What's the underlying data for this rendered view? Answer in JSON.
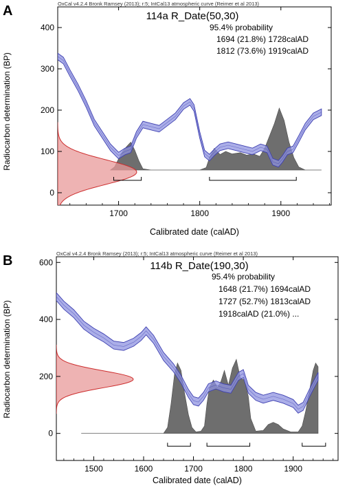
{
  "chart_data": [
    {
      "panel": "A",
      "type": "area",
      "credit": "OxCal v4.2.4 Bronk Ramsey (2013); r:5; IntCal13 atmospheric curve (Reimer et al 2013)",
      "title": "114a R_Date(50,30)",
      "probability_heading": "95.4% probability",
      "ranges_text": [
        "1694 (21.8%) 1728calAD",
        "1812 (73.6%) 1919calAD"
      ],
      "xlabel": "Calibrated date (calAD)",
      "ylabel": "Radiocarbon determination (BP)",
      "xlim": [
        1625,
        1962
      ],
      "ylim": [
        -30,
        450
      ],
      "xticks": [
        1700,
        1800,
        1900
      ],
      "yticks": [
        0,
        100,
        200,
        300,
        400
      ],
      "radiocarbon_mean": 50,
      "radiocarbon_error": 30,
      "prob_baseline_y": 55,
      "prob_max_height": 150,
      "range_bar_y": 30,
      "calibration_curve": {
        "name": "IntCal13",
        "x": [
          1625,
          1632,
          1640,
          1650,
          1660,
          1670,
          1680,
          1690,
          1700,
          1708,
          1715,
          1722,
          1730,
          1740,
          1750,
          1760,
          1770,
          1780,
          1788,
          1793,
          1800,
          1806,
          1812,
          1818,
          1825,
          1835,
          1845,
          1855,
          1865,
          1875,
          1883,
          1890,
          1897,
          1902,
          1908,
          1915,
          1922,
          1930,
          1940,
          1950
        ],
        "y": [
          330,
          320,
          290,
          255,
          215,
          170,
          140,
          110,
          90,
          100,
          105,
          140,
          165,
          160,
          155,
          170,
          185,
          210,
          220,
          205,
          140,
          95,
          85,
          98,
          110,
          115,
          110,
          105,
          100,
          110,
          105,
          75,
          70,
          82,
          100,
          105,
          130,
          160,
          185,
          195
        ],
        "band": [
          8,
          8,
          8,
          8,
          8,
          8,
          8,
          8,
          8,
          8,
          8,
          8,
          8,
          8,
          8,
          8,
          8,
          8,
          8,
          8,
          8,
          8,
          8,
          8,
          8,
          8,
          8,
          8,
          8,
          8,
          8,
          8,
          8,
          8,
          8,
          8,
          8,
          8,
          8,
          8
        ]
      },
      "calibrated_probability": {
        "x": [
          1690,
          1695,
          1700,
          1705,
          1710,
          1715,
          1720,
          1725,
          1730,
          1740,
          1760,
          1780,
          1800,
          1808,
          1812,
          1818,
          1825,
          1832,
          1840,
          1850,
          1858,
          1866,
          1874,
          1880,
          1886,
          1892,
          1898,
          1904,
          1910,
          1916,
          1922,
          1930,
          1950
        ],
        "p": [
          0,
          0.05,
          0.18,
          0.3,
          0.38,
          0.45,
          0.32,
          0.15,
          0.02,
          0,
          0,
          0,
          0,
          0.04,
          0.2,
          0.35,
          0.25,
          0.3,
          0.26,
          0.28,
          0.24,
          0.26,
          0.22,
          0.35,
          0.55,
          0.75,
          1.0,
          0.8,
          0.45,
          0.2,
          0.05,
          0,
          0
        ]
      },
      "range_bars": [
        [
          1694,
          1728
        ],
        [
          1812,
          1919
        ]
      ]
    },
    {
      "panel": "B",
      "type": "area",
      "credit": "OxCal v4.2.4 Bronk Ramsey (2013); r:5; IntCal13 atmospheric curve (Reimer et al 2013)",
      "title": "114b R_Date(190,30)",
      "probability_heading": "95.4% probability",
      "ranges_text": [
        "1648 (21.7%) 1694calAD",
        "1727 (52.7%) 1813calAD",
        "1918calAD (21.0%) ..."
      ],
      "xlabel": "Calibrated date (calAD)",
      "ylabel": "Radiocarbon determination (BP)",
      "xlim": [
        1425,
        1990
      ],
      "ylim": [
        -95,
        620
      ],
      "xticks": [
        1500,
        1600,
        1700,
        1800,
        1900
      ],
      "yticks": [
        0,
        200,
        400,
        600
      ],
      "radiocarbon_mean": 190,
      "radiocarbon_error": 30,
      "prob_baseline_y": 0,
      "prob_max_height": 260,
      "range_bar_y": -45,
      "calibration_curve": {
        "name": "IntCal13",
        "x": [
          1425,
          1440,
          1460,
          1480,
          1500,
          1520,
          1540,
          1560,
          1580,
          1595,
          1605,
          1620,
          1640,
          1660,
          1675,
          1690,
          1700,
          1710,
          1720,
          1730,
          1745,
          1760,
          1775,
          1790,
          1800,
          1810,
          1825,
          1840,
          1860,
          1880,
          1900,
          1910,
          1920,
          1935,
          1950
        ],
        "y": [
          480,
          450,
          420,
          380,
          355,
          335,
          310,
          305,
          320,
          340,
          360,
          330,
          270,
          230,
          190,
          140,
          115,
          110,
          130,
          160,
          170,
          160,
          155,
          200,
          210,
          155,
          130,
          120,
          130,
          120,
          105,
          85,
          95,
          150,
          200
        ],
        "band": [
          14,
          14,
          14,
          14,
          14,
          14,
          14,
          14,
          14,
          14,
          14,
          14,
          14,
          14,
          14,
          14,
          14,
          14,
          14,
          14,
          14,
          14,
          14,
          14,
          14,
          14,
          14,
          14,
          14,
          14,
          14,
          14,
          14,
          14,
          14
        ]
      },
      "calibrated_probability": {
        "x": [
          1475,
          1600,
          1640,
          1648,
          1655,
          1662,
          1668,
          1675,
          1682,
          1690,
          1697,
          1705,
          1715,
          1722,
          1727,
          1732,
          1740,
          1748,
          1755,
          1762,
          1770,
          1778,
          1786,
          1794,
          1802,
          1810,
          1815,
          1825,
          1840,
          1850,
          1860,
          1870,
          1880,
          1895,
          1910,
          1918,
          1925,
          1932,
          1940,
          1945,
          1950
        ],
        "p": [
          0,
          0,
          0,
          0.08,
          0.4,
          0.8,
          0.95,
          0.85,
          0.55,
          0.25,
          0.08,
          0.02,
          0.03,
          0.1,
          0.4,
          0.62,
          0.72,
          0.62,
          0.7,
          0.85,
          0.65,
          0.88,
          1.0,
          0.75,
          0.72,
          0.5,
          0.2,
          0.03,
          0.04,
          0.12,
          0.15,
          0.12,
          0.06,
          0.02,
          0.02,
          0.1,
          0.3,
          0.55,
          0.85,
          0.95,
          0.9
        ]
      },
      "range_bars": [
        [
          1648,
          1694
        ],
        [
          1727,
          1813
        ],
        [
          1918,
          1965
        ]
      ]
    }
  ],
  "panel_letters": [
    "A",
    "B"
  ]
}
